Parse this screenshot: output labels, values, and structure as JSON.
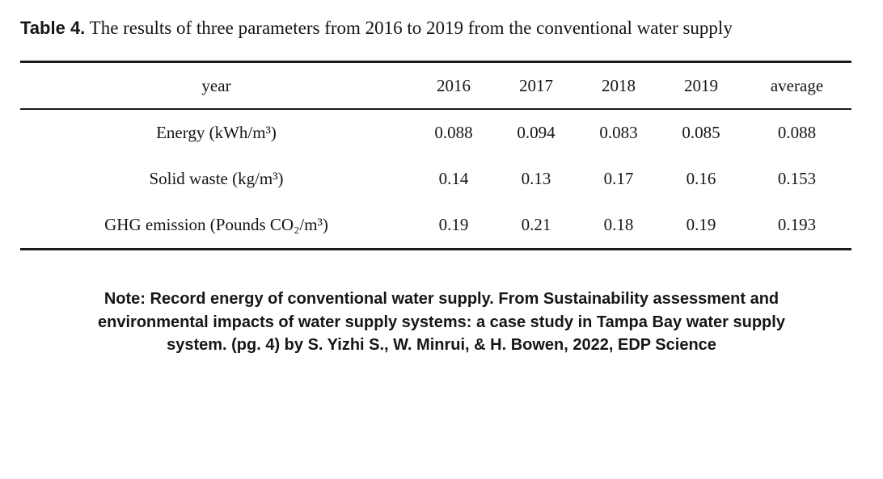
{
  "title": {
    "label": "Table 4.",
    "text": "The results of three parameters from 2016 to 2019 from the conventional water supply"
  },
  "table": {
    "columns": [
      "year",
      "2016",
      "2017",
      "2018",
      "2019",
      "average"
    ],
    "rows": [
      {
        "label": "Energy (kWh/m³)",
        "values": [
          "0.088",
          "0.094",
          "0.083",
          "0.085",
          "0.088"
        ]
      },
      {
        "label": "Solid waste (kg/m³)",
        "values": [
          "0.14",
          "0.13",
          "0.17",
          "0.16",
          "0.153"
        ]
      },
      {
        "label": "GHG emission (Pounds CO₂/m³)",
        "values": [
          "0.19",
          "0.21",
          "0.18",
          "0.19",
          "0.193"
        ]
      }
    ]
  },
  "note": {
    "lines": [
      "Note: Record energy of conventional water supply. From Sustainability assessment and",
      "environmental impacts of water supply systems: a case study in Tampa Bay water supply",
      "system. (pg. 4) by S. Yizhi S., W. Minrui, & H. Bowen, 2022, EDP Science"
    ]
  },
  "colors": {
    "text": "#161616",
    "rule": "#1a1a1a",
    "background": "#ffffff"
  }
}
